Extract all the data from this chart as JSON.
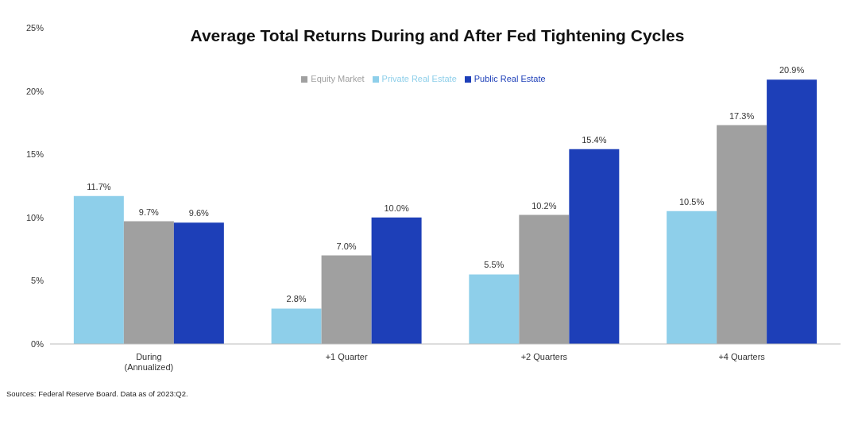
{
  "chart_data": {
    "type": "bar",
    "title": "Average Total Returns During and After Fed Tightening Cycles",
    "categories": [
      "During\n(Annualized)",
      "+1 Quarter",
      "+2 Quarters",
      "+4 Quarters"
    ],
    "series": [
      {
        "name": "Private Real Estate",
        "color": "#8ecfea",
        "values": [
          11.7,
          2.8,
          5.5,
          10.5
        ],
        "value_labels": [
          "11.7%",
          "2.8%",
          "5.5%",
          "10.5%"
        ]
      },
      {
        "name": "Equity Market",
        "color": "#a0a0a0",
        "values": [
          9.7,
          7.0,
          10.2,
          17.3
        ],
        "value_labels": [
          "9.7%",
          "7.0%",
          "10.2%",
          "17.3%"
        ]
      },
      {
        "name": "Public Real Estate",
        "color": "#1d3fb8",
        "values": [
          9.6,
          10.0,
          15.4,
          20.9
        ],
        "value_labels": [
          "9.6%",
          "10.0%",
          "15.4%",
          "20.9%"
        ]
      }
    ],
    "ylim": [
      0,
      25
    ],
    "yticks": [
      {
        "value": 0,
        "label": "0%"
      },
      {
        "value": 5,
        "label": "5%"
      },
      {
        "value": 10,
        "label": "10%"
      },
      {
        "value": 15,
        "label": "15%"
      },
      {
        "value": 20,
        "label": "20%"
      },
      {
        "value": 25,
        "label": "25%"
      }
    ],
    "grid": false,
    "legend": "top",
    "annotations": [
      "Sources: Federal Reserve Board. Data as of 2023:Q2."
    ]
  }
}
